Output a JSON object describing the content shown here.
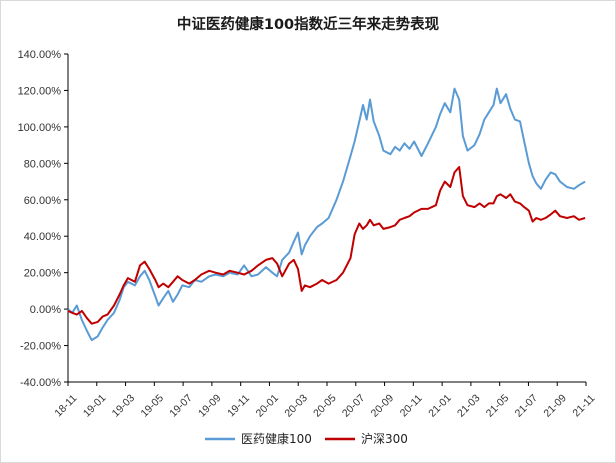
{
  "chart_data": {
    "type": "line",
    "title": "中证医药健康100指数近三年来走势表现",
    "y_ticks": [
      "140.00%",
      "120.00%",
      "100.00%",
      "80.00%",
      "60.00%",
      "40.00%",
      "20.00%",
      "0.00%",
      "-20.00%",
      "-40.00%"
    ],
    "ylim": [
      -40,
      140
    ],
    "x_ticks": [
      "18-11",
      "19-01",
      "19-03",
      "19-05",
      "19-07",
      "19-09",
      "19-11",
      "20-01",
      "20-03",
      "20-05",
      "20-07",
      "20-09",
      "20-11",
      "21-01",
      "21-03",
      "21-05",
      "21-07",
      "21-09",
      "21-11"
    ],
    "x_range": [
      "2018-11-01",
      "2021-11-20"
    ],
    "legend_position": "bottom",
    "grid": false,
    "series": [
      {
        "name": "医药健康100",
        "color": "#5b9bd5",
        "points": [
          [
            "2018-11-01",
            0
          ],
          [
            "2018-11-10",
            -2
          ],
          [
            "2018-11-20",
            2
          ],
          [
            "2018-12-01",
            -6
          ],
          [
            "2018-12-12",
            -12
          ],
          [
            "2018-12-22",
            -17
          ],
          [
            "2019-01-04",
            -15
          ],
          [
            "2019-01-15",
            -10
          ],
          [
            "2019-01-25",
            -6
          ],
          [
            "2019-02-08",
            -2
          ],
          [
            "2019-02-20",
            5
          ],
          [
            "2019-03-01",
            12
          ],
          [
            "2019-03-10",
            15
          ],
          [
            "2019-03-25",
            13
          ],
          [
            "2019-04-05",
            18
          ],
          [
            "2019-04-15",
            21
          ],
          [
            "2019-04-25",
            16
          ],
          [
            "2019-05-08",
            7
          ],
          [
            "2019-05-15",
            2
          ],
          [
            "2019-05-25",
            6
          ],
          [
            "2019-06-05",
            10
          ],
          [
            "2019-06-15",
            4
          ],
          [
            "2019-06-25",
            8
          ],
          [
            "2019-07-05",
            13
          ],
          [
            "2019-07-20",
            12
          ],
          [
            "2019-08-01",
            16
          ],
          [
            "2019-08-15",
            15
          ],
          [
            "2019-09-01",
            18
          ],
          [
            "2019-09-15",
            19
          ],
          [
            "2019-10-01",
            18
          ],
          [
            "2019-10-15",
            20
          ],
          [
            "2019-11-01",
            19
          ],
          [
            "2019-11-15",
            24
          ],
          [
            "2019-12-01",
            18
          ],
          [
            "2019-12-15",
            19
          ],
          [
            "2020-01-01",
            23
          ],
          [
            "2020-01-15",
            20
          ],
          [
            "2020-01-25",
            18
          ],
          [
            "2020-02-05",
            27
          ],
          [
            "2020-02-20",
            31
          ],
          [
            "2020-03-01",
            37
          ],
          [
            "2020-03-10",
            42
          ],
          [
            "2020-03-18",
            30
          ],
          [
            "2020-03-25",
            35
          ],
          [
            "2020-04-05",
            40
          ],
          [
            "2020-04-20",
            45
          ],
          [
            "2020-05-01",
            47
          ],
          [
            "2020-05-15",
            50
          ],
          [
            "2020-06-01",
            60
          ],
          [
            "2020-06-15",
            70
          ],
          [
            "2020-07-01",
            84
          ],
          [
            "2020-07-10",
            92
          ],
          [
            "2020-07-20",
            103
          ],
          [
            "2020-07-28",
            112
          ],
          [
            "2020-08-05",
            104
          ],
          [
            "2020-08-12",
            115
          ],
          [
            "2020-08-20",
            103
          ],
          [
            "2020-09-01",
            95
          ],
          [
            "2020-09-10",
            87
          ],
          [
            "2020-09-25",
            85
          ],
          [
            "2020-10-05",
            89
          ],
          [
            "2020-10-15",
            87
          ],
          [
            "2020-10-25",
            91
          ],
          [
            "2020-11-05",
            88
          ],
          [
            "2020-11-15",
            92
          ],
          [
            "2020-12-01",
            84
          ],
          [
            "2020-12-15",
            91
          ],
          [
            "2021-01-01",
            100
          ],
          [
            "2021-01-10",
            107
          ],
          [
            "2021-01-20",
            113
          ],
          [
            "2021-02-01",
            108
          ],
          [
            "2021-02-10",
            121
          ],
          [
            "2021-02-20",
            115
          ],
          [
            "2021-02-28",
            95
          ],
          [
            "2021-03-10",
            87
          ],
          [
            "2021-03-25",
            90
          ],
          [
            "2021-04-05",
            96
          ],
          [
            "2021-04-15",
            104
          ],
          [
            "2021-04-25",
            108
          ],
          [
            "2021-05-05",
            112
          ],
          [
            "2021-05-12",
            121
          ],
          [
            "2021-05-20",
            113
          ],
          [
            "2021-06-01",
            118
          ],
          [
            "2021-06-10",
            110
          ],
          [
            "2021-06-20",
            104
          ],
          [
            "2021-07-01",
            103
          ],
          [
            "2021-07-10",
            92
          ],
          [
            "2021-07-20",
            80
          ],
          [
            "2021-07-28",
            73
          ],
          [
            "2021-08-05",
            69
          ],
          [
            "2021-08-15",
            66
          ],
          [
            "2021-08-25",
            71
          ],
          [
            "2021-09-05",
            75
          ],
          [
            "2021-09-15",
            74
          ],
          [
            "2021-09-25",
            70
          ],
          [
            "2021-10-10",
            67
          ],
          [
            "2021-10-25",
            66
          ],
          [
            "2021-11-05",
            68
          ],
          [
            "2021-11-18",
            70
          ]
        ]
      },
      {
        "name": "沪深300",
        "color": "#c00000",
        "points": [
          [
            "2018-11-01",
            -1
          ],
          [
            "2018-11-10",
            -2
          ],
          [
            "2018-11-20",
            -3
          ],
          [
            "2018-12-01",
            -1
          ],
          [
            "2018-12-12",
            -5
          ],
          [
            "2018-12-22",
            -8
          ],
          [
            "2019-01-04",
            -7
          ],
          [
            "2019-01-15",
            -4
          ],
          [
            "2019-01-25",
            -3
          ],
          [
            "2019-02-08",
            2
          ],
          [
            "2019-02-20",
            8
          ],
          [
            "2019-03-01",
            13
          ],
          [
            "2019-03-10",
            17
          ],
          [
            "2019-03-25",
            15
          ],
          [
            "2019-04-05",
            24
          ],
          [
            "2019-04-15",
            26
          ],
          [
            "2019-04-25",
            22
          ],
          [
            "2019-05-08",
            16
          ],
          [
            "2019-05-15",
            12
          ],
          [
            "2019-05-25",
            14
          ],
          [
            "2019-06-05",
            12
          ],
          [
            "2019-06-15",
            15
          ],
          [
            "2019-06-25",
            18
          ],
          [
            "2019-07-05",
            16
          ],
          [
            "2019-07-20",
            14
          ],
          [
            "2019-08-01",
            16
          ],
          [
            "2019-08-15",
            19
          ],
          [
            "2019-09-01",
            21
          ],
          [
            "2019-09-15",
            20
          ],
          [
            "2019-10-01",
            19
          ],
          [
            "2019-10-15",
            21
          ],
          [
            "2019-11-01",
            20
          ],
          [
            "2019-11-15",
            19
          ],
          [
            "2019-12-01",
            21
          ],
          [
            "2019-12-15",
            24
          ],
          [
            "2020-01-01",
            27
          ],
          [
            "2020-01-15",
            28
          ],
          [
            "2020-01-25",
            25
          ],
          [
            "2020-02-05",
            18
          ],
          [
            "2020-02-20",
            25
          ],
          [
            "2020-03-01",
            27
          ],
          [
            "2020-03-10",
            22
          ],
          [
            "2020-03-18",
            10
          ],
          [
            "2020-03-25",
            13
          ],
          [
            "2020-04-05",
            12
          ],
          [
            "2020-04-20",
            14
          ],
          [
            "2020-05-01",
            16
          ],
          [
            "2020-05-15",
            14
          ],
          [
            "2020-06-01",
            16
          ],
          [
            "2020-06-15",
            20
          ],
          [
            "2020-07-01",
            28
          ],
          [
            "2020-07-10",
            41
          ],
          [
            "2020-07-20",
            47
          ],
          [
            "2020-07-28",
            44
          ],
          [
            "2020-08-05",
            46
          ],
          [
            "2020-08-12",
            49
          ],
          [
            "2020-08-20",
            46
          ],
          [
            "2020-09-01",
            47
          ],
          [
            "2020-09-10",
            44
          ],
          [
            "2020-09-25",
            45
          ],
          [
            "2020-10-05",
            46
          ],
          [
            "2020-10-15",
            49
          ],
          [
            "2020-10-25",
            50
          ],
          [
            "2020-11-05",
            51
          ],
          [
            "2020-11-15",
            53
          ],
          [
            "2020-12-01",
            55
          ],
          [
            "2020-12-15",
            55
          ],
          [
            "2021-01-01",
            57
          ],
          [
            "2021-01-10",
            65
          ],
          [
            "2021-01-20",
            70
          ],
          [
            "2021-02-01",
            67
          ],
          [
            "2021-02-10",
            75
          ],
          [
            "2021-02-20",
            78
          ],
          [
            "2021-02-28",
            62
          ],
          [
            "2021-03-10",
            57
          ],
          [
            "2021-03-25",
            56
          ],
          [
            "2021-04-05",
            58
          ],
          [
            "2021-04-15",
            56
          ],
          [
            "2021-04-25",
            58
          ],
          [
            "2021-05-05",
            58
          ],
          [
            "2021-05-12",
            62
          ],
          [
            "2021-05-20",
            63
          ],
          [
            "2021-06-01",
            61
          ],
          [
            "2021-06-10",
            63
          ],
          [
            "2021-06-20",
            59
          ],
          [
            "2021-07-01",
            58
          ],
          [
            "2021-07-10",
            56
          ],
          [
            "2021-07-20",
            54
          ],
          [
            "2021-07-28",
            48
          ],
          [
            "2021-08-05",
            50
          ],
          [
            "2021-08-15",
            49
          ],
          [
            "2021-08-25",
            50
          ],
          [
            "2021-09-05",
            52
          ],
          [
            "2021-09-15",
            54
          ],
          [
            "2021-09-25",
            51
          ],
          [
            "2021-10-10",
            50
          ],
          [
            "2021-10-25",
            51
          ],
          [
            "2021-11-05",
            49
          ],
          [
            "2021-11-18",
            50
          ]
        ]
      }
    ]
  }
}
